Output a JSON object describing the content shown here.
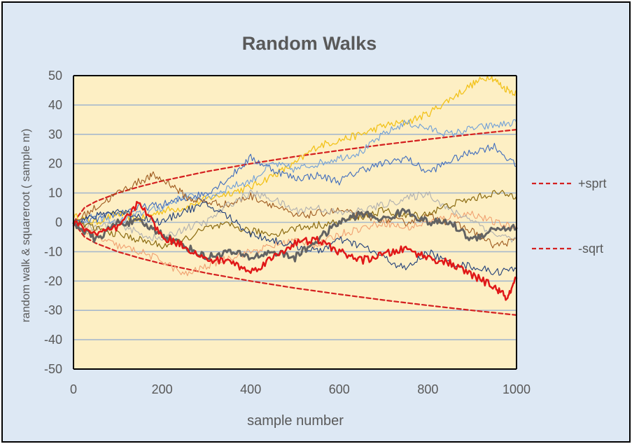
{
  "colors": {
    "chart_area_bg": "#dde8f4",
    "plot_area_bg": "#fdefc4",
    "gridline": "#a7b9cc",
    "sqrt_line": "#d42020",
    "text": "#595959",
    "title": "#595959"
  },
  "chart_data": {
    "type": "line",
    "title": "Random Walks",
    "xlabel": "sample number",
    "ylabel": "random walk & squareroot ( sample nr)",
    "xlim": [
      0,
      1000
    ],
    "ylim": [
      -50,
      50
    ],
    "xticks": [
      0,
      200,
      400,
      600,
      800,
      1000
    ],
    "yticks": [
      -50,
      -40,
      -30,
      -20,
      -10,
      0,
      10,
      20,
      30,
      40,
      50
    ],
    "grid": true,
    "legend_position": "right",
    "legend": [
      {
        "label": "+sprt",
        "color": "#d42020",
        "style": "dashed"
      },
      {
        "label": "-sqrt",
        "color": "#d42020",
        "style": "dashed"
      }
    ],
    "series": [
      {
        "name": "+sprt",
        "color": "#d42020",
        "dashed": true,
        "width": 2.2,
        "x": [
          0,
          25,
          50,
          100,
          150,
          200,
          300,
          400,
          500,
          600,
          700,
          800,
          900,
          1000
        ],
        "y": [
          0,
          5,
          7.1,
          10,
          12.2,
          14.1,
          17.3,
          20,
          22.4,
          24.5,
          26.5,
          28.3,
          30,
          31.6
        ]
      },
      {
        "name": "-sqrt",
        "color": "#d42020",
        "dashed": true,
        "width": 2.2,
        "x": [
          0,
          25,
          50,
          100,
          150,
          200,
          300,
          400,
          500,
          600,
          700,
          800,
          900,
          1000
        ],
        "y": [
          0,
          -5,
          -7.1,
          -10,
          -12.2,
          -14.1,
          -17.3,
          -20,
          -22.4,
          -24.5,
          -26.5,
          -28.3,
          -30,
          -31.6
        ]
      },
      {
        "color": "#f2c21a",
        "width": 1.3,
        "x": [
          0,
          50,
          100,
          150,
          200,
          250,
          300,
          350,
          400,
          450,
          500,
          550,
          600,
          650,
          700,
          750,
          800,
          850,
          900,
          940,
          970,
          1000
        ],
        "y": [
          2,
          0,
          3,
          1,
          4,
          5,
          8,
          10,
          12,
          16,
          20,
          26,
          28,
          30,
          33,
          34,
          37,
          42,
          47,
          50,
          46,
          44
        ]
      },
      {
        "color": "#6f9fd8",
        "width": 1.1,
        "x": [
          0,
          50,
          100,
          150,
          200,
          250,
          300,
          350,
          400,
          450,
          500,
          550,
          600,
          650,
          700,
          750,
          800,
          850,
          900,
          950,
          1000
        ],
        "y": [
          0,
          2,
          0,
          3,
          5,
          9,
          8,
          12,
          14,
          20,
          18,
          20,
          22,
          24,
          30,
          34,
          32,
          30,
          32,
          33,
          34
        ]
      },
      {
        "color": "#3f6cbd",
        "width": 1.1,
        "x": [
          0,
          50,
          100,
          150,
          200,
          250,
          300,
          350,
          400,
          450,
          500,
          550,
          600,
          650,
          700,
          750,
          800,
          850,
          900,
          950,
          1000
        ],
        "y": [
          0,
          1,
          3,
          5,
          6,
          8,
          10,
          15,
          22,
          18,
          15,
          16,
          14,
          18,
          20,
          22,
          17,
          21,
          24,
          26,
          19
        ]
      },
      {
        "color": "#9e5a1f",
        "width": 1.1,
        "x": [
          0,
          50,
          100,
          150,
          180,
          220,
          260,
          300,
          350,
          400,
          450,
          500,
          550,
          600,
          650,
          700,
          750,
          800,
          850,
          900,
          950,
          1000
        ],
        "y": [
          0,
          5,
          10,
          14,
          16,
          13,
          8,
          7,
          6,
          9,
          6,
          2,
          3,
          4,
          2,
          1,
          0,
          2,
          0,
          -3,
          -8,
          -6
        ]
      },
      {
        "color": "#f0a070",
        "width": 1.1,
        "x": [
          0,
          50,
          100,
          150,
          200,
          250,
          300,
          350,
          400,
          450,
          500,
          550,
          600,
          650,
          700,
          750,
          800,
          850,
          900,
          950,
          1000
        ],
        "y": [
          0,
          -5,
          -8,
          -10,
          -13,
          -18,
          -15,
          -12,
          -10,
          -8,
          -6,
          -8,
          -4,
          -2,
          0,
          -2,
          0,
          2,
          3,
          0,
          -2
        ]
      },
      {
        "color": "#b0b0b0",
        "width": 1.1,
        "x": [
          0,
          50,
          100,
          150,
          200,
          250,
          300,
          350,
          400,
          450,
          500,
          550,
          600,
          650,
          700,
          750,
          800,
          850,
          900,
          950,
          1000
        ],
        "y": [
          0,
          -2,
          0,
          -4,
          -6,
          -2,
          0,
          6,
          10,
          8,
          4,
          5,
          3,
          4,
          6,
          8,
          10,
          4,
          1,
          -4,
          -6
        ]
      },
      {
        "color": "#8a6a10",
        "width": 1.2,
        "x": [
          0,
          50,
          100,
          150,
          200,
          250,
          300,
          350,
          400,
          450,
          500,
          550,
          600,
          650,
          700,
          750,
          800,
          850,
          900,
          950,
          1000
        ],
        "y": [
          0,
          -2,
          -4,
          -6,
          -8,
          -6,
          -2,
          -1,
          -3,
          -4,
          -2,
          -1,
          0,
          2,
          4,
          2,
          3,
          6,
          8,
          10,
          9
        ]
      },
      {
        "color": "#1f3d78",
        "width": 1.1,
        "x": [
          0,
          50,
          100,
          150,
          200,
          250,
          300,
          350,
          400,
          450,
          500,
          550,
          600,
          650,
          700,
          750,
          800,
          850,
          900,
          950,
          1000
        ],
        "y": [
          0,
          2,
          4,
          2,
          0,
          4,
          6,
          2,
          -4,
          -6,
          -8,
          -10,
          -6,
          -8,
          -12,
          -16,
          -10,
          -14,
          -15,
          -17,
          -16
        ]
      },
      {
        "color": "#636363",
        "width": 3,
        "x": [
          0,
          50,
          100,
          150,
          200,
          250,
          300,
          350,
          400,
          450,
          500,
          550,
          600,
          650,
          700,
          750,
          800,
          850,
          900,
          950,
          1000
        ],
        "y": [
          0,
          -6,
          0,
          0,
          -4,
          -8,
          -12,
          -10,
          -12,
          -10,
          -12,
          -6,
          0,
          3,
          1,
          4,
          0,
          0,
          -6,
          -2,
          -2
        ]
      },
      {
        "color": "#e01818",
        "width": 2.5,
        "x": [
          0,
          50,
          100,
          150,
          200,
          250,
          300,
          350,
          400,
          450,
          500,
          550,
          600,
          650,
          700,
          750,
          800,
          850,
          900,
          950,
          980,
          1000
        ],
        "y": [
          0,
          -4,
          -2,
          7,
          -5,
          -8,
          -13,
          -13,
          -17,
          -12,
          -7,
          -6,
          -10,
          -13,
          -11,
          -9,
          -12,
          -14,
          -18,
          -22,
          -26,
          -19
        ]
      }
    ]
  }
}
